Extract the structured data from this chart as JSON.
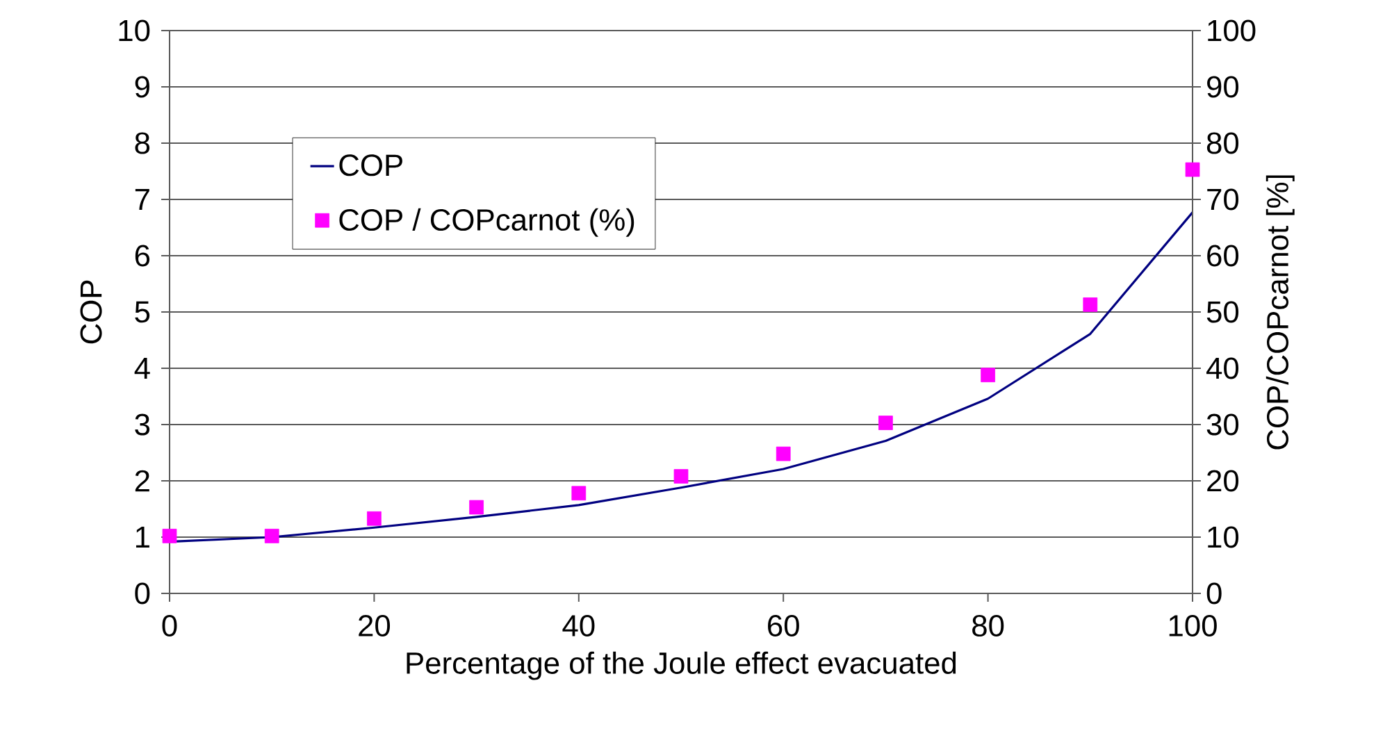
{
  "chart_data": {
    "type": "line",
    "xlabel": "Percentage of the Joule effect evacuated",
    "ylabel": "COP",
    "y2label": "COP/COPcarnot [%]",
    "x": [
      0,
      10,
      20,
      30,
      40,
      50,
      60,
      70,
      80,
      90,
      100
    ],
    "series": [
      {
        "name": "COP",
        "color": "#000080",
        "marker": "none",
        "line_style": "solid",
        "values": [
          0.92,
          1.0,
          1.17,
          1.36,
          1.57,
          1.88,
          2.21,
          2.71,
          3.46,
          4.61,
          6.77
        ]
      },
      {
        "name": "COP  / COPcarnot  (%)",
        "type": "scatter",
        "axis": "y2",
        "color": "#ff00ff",
        "marker": "square",
        "values": [
          10.2,
          10.2,
          13.3,
          15.3,
          17.8,
          20.8,
          24.8,
          30.3,
          38.8,
          51.3,
          75.3
        ]
      }
    ],
    "xlim": [
      0,
      100
    ],
    "xticks": [
      0,
      20,
      40,
      60,
      80,
      100
    ],
    "ylim": [
      0,
      10
    ],
    "yticks": [
      0,
      1,
      2,
      3,
      4,
      5,
      6,
      7,
      8,
      9,
      10
    ],
    "y2lim": [
      0,
      100
    ],
    "y2ticks": [
      0,
      10,
      20,
      30,
      40,
      50,
      60,
      70,
      80,
      90,
      100
    ],
    "grid": "y",
    "legend": "top left"
  }
}
